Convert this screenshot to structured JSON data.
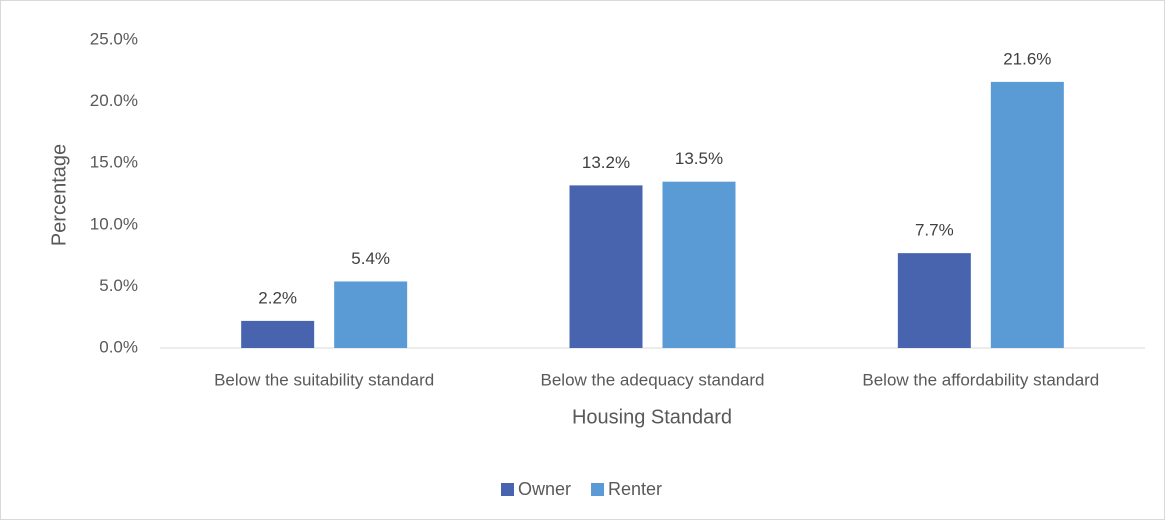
{
  "chart_data": {
    "type": "bar",
    "x_label": "Housing Standard",
    "y_label": "Percentage",
    "categories": [
      "Below the suitability standard",
      "Below the adequacy standard",
      "Below the affordability standard"
    ],
    "series": [
      {
        "name": "Owner",
        "color": "#4864ae",
        "values": [
          2.2,
          13.2,
          7.7
        ],
        "value_labels": [
          "2.2%",
          "13.2%",
          "7.7%"
        ]
      },
      {
        "name": "Renter",
        "color": "#5b9bd5",
        "values": [
          5.4,
          13.5,
          21.6
        ],
        "value_labels": [
          "5.4%",
          "13.5%",
          "21.6%"
        ]
      }
    ],
    "ylim": [
      0,
      25
    ],
    "yticks": [
      {
        "value": 0,
        "label": "0.0%"
      },
      {
        "value": 5,
        "label": "5.0%"
      },
      {
        "value": 10,
        "label": "10.0%"
      },
      {
        "value": 15,
        "label": "15.0%"
      },
      {
        "value": 20,
        "label": "20.0%"
      },
      {
        "value": 25,
        "label": "25.0%"
      }
    ],
    "grid": false,
    "legend": "bottom"
  }
}
